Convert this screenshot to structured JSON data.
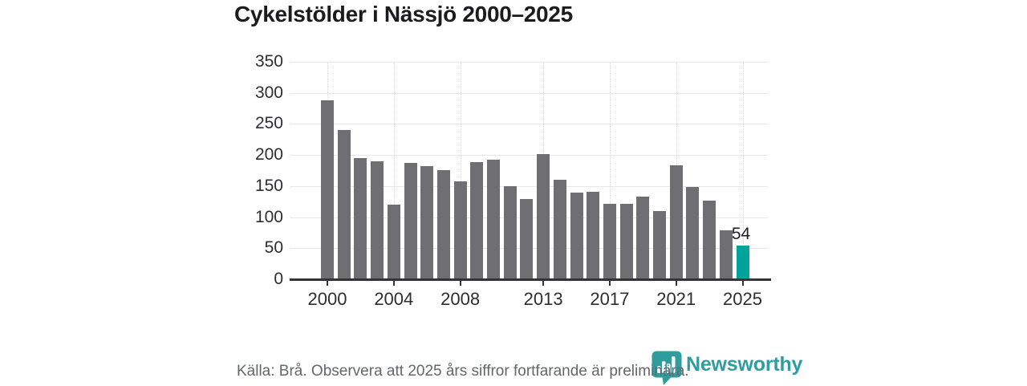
{
  "title": "Cykelstölder i Nässjö 2000–2025",
  "footer": {
    "source_text": "Källa: Brå. Observera att 2025 års siffror fortfarande är preliminära.",
    "brand": "Newsworthy"
  },
  "colors": {
    "bar": "#6e6e73",
    "bar_highlight": "#00a39b",
    "axis": "#333338",
    "grid": "#e8e8ea",
    "title_text": "#1b1b1d",
    "tick_text": "#2e2e31",
    "source_text": "#64666b",
    "brand": "#2f9d9e"
  },
  "chart_data": {
    "type": "bar",
    "title": "Cykelstölder i Nässjö 2000–2025",
    "x": [
      2000,
      2001,
      2002,
      2003,
      2004,
      2005,
      2006,
      2007,
      2008,
      2009,
      2010,
      2011,
      2012,
      2013,
      2014,
      2015,
      2016,
      2017,
      2018,
      2019,
      2020,
      2021,
      2022,
      2023,
      2024,
      2025
    ],
    "values": [
      288,
      240,
      195,
      190,
      120,
      187,
      182,
      176,
      158,
      188,
      193,
      150,
      129,
      201,
      160,
      139,
      141,
      122,
      121,
      133,
      110,
      183,
      149,
      126,
      79,
      54
    ],
    "highlight_year": 2025,
    "annotations": [
      {
        "year": 2025,
        "text": "54"
      }
    ],
    "x_tick_labels": [
      "2000",
      "2004",
      "2008",
      "2013",
      "2017",
      "2021",
      "2025"
    ],
    "y_ticks": [
      0,
      50,
      100,
      150,
      200,
      250,
      300,
      350
    ],
    "ylim": [
      0,
      350
    ],
    "grid": "horizontal",
    "legend_position": "none"
  }
}
